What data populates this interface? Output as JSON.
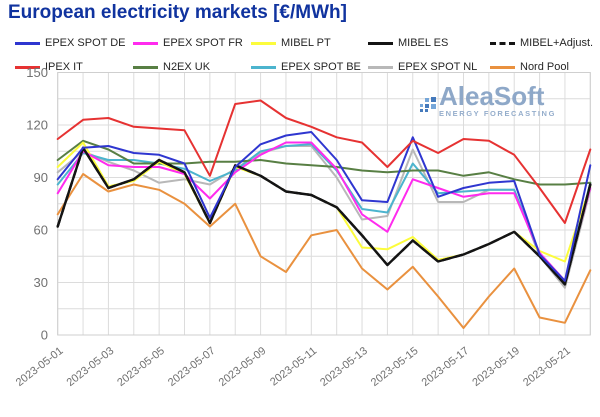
{
  "title": "European electricity markets [€/MWh]",
  "watermark": {
    "brand": "AleaSoft",
    "tagline": "ENERGY FORECASTING"
  },
  "legend": {
    "rows": [
      [
        0,
        1,
        2,
        3,
        4
      ],
      [
        5,
        6,
        7,
        8,
        9
      ]
    ],
    "column_lefts": [
      15,
      133,
      251,
      368,
      490
    ],
    "row_tops": [
      36,
      60
    ]
  },
  "chart_data": {
    "type": "line",
    "title": "European electricity markets [€/MWh]",
    "xlabel": "",
    "ylabel": "€/MWh",
    "ylim": [
      0,
      150
    ],
    "y_ticks": [
      0,
      30,
      60,
      90,
      120,
      150
    ],
    "y_minor_step": 15,
    "grid": true,
    "legend_position": "top",
    "x": [
      "2023-05-01",
      "2023-05-02",
      "2023-05-03",
      "2023-05-04",
      "2023-05-05",
      "2023-05-06",
      "2023-05-07",
      "2023-05-08",
      "2023-05-09",
      "2023-05-10",
      "2023-05-11",
      "2023-05-12",
      "2023-05-13",
      "2023-05-14",
      "2023-05-15",
      "2023-05-16",
      "2023-05-17",
      "2023-05-18",
      "2023-05-19",
      "2023-05-20",
      "2023-05-21",
      "2023-05-22"
    ],
    "x_tick_shown_every": 2,
    "series": [
      {
        "name": "EPEX SPOT DE",
        "color": "#2f36d0",
        "dash": null,
        "values": [
          89,
          107,
          108,
          104,
          103,
          98,
          67,
          96,
          109,
          114,
          116,
          100,
          77,
          76,
          113,
          79,
          84,
          87,
          88,
          46,
          31,
          97
        ]
      },
      {
        "name": "EPEX SPOT FR",
        "color": "#ff2bee",
        "dash": null,
        "values": [
          81,
          105,
          97,
          96,
          96,
          92,
          78,
          93,
          103,
          110,
          110,
          95,
          69,
          59,
          89,
          84,
          79,
          81,
          81,
          47,
          31,
          84
        ]
      },
      {
        "name": "MIBEL PT",
        "color": "#fcfc3c",
        "dash": null,
        "values": [
          96,
          110,
          85,
          88,
          99,
          92,
          64,
          96,
          91,
          82,
          80,
          73,
          50,
          49,
          56,
          43,
          46,
          52,
          59,
          48,
          42,
          85
        ]
      },
      {
        "name": "MIBEL ES",
        "color": "#141414",
        "dash": null,
        "values": [
          62,
          107,
          84,
          89,
          100,
          93,
          64,
          97,
          91,
          82,
          80,
          73,
          57,
          40,
          54,
          42,
          46,
          52,
          59,
          45,
          29,
          86
        ]
      },
      {
        "name": "MIBEL+Adjust.",
        "color": "#141414",
        "dash": "7 6",
        "values": [
          62,
          107,
          84,
          89,
          100,
          93,
          64,
          97,
          91,
          82,
          80,
          73,
          57,
          40,
          54,
          42,
          46,
          52,
          59,
          45,
          29,
          86
        ]
      },
      {
        "name": "IPEX IT",
        "color": "#e63232",
        "dash": null,
        "values": [
          112,
          123,
          124,
          119,
          118,
          117,
          91,
          132,
          134,
          124,
          119,
          113,
          110,
          96,
          111,
          104,
          112,
          111,
          103,
          84,
          64,
          106
        ]
      },
      {
        "name": "N2EX UK",
        "color": "#587f44",
        "dash": null,
        "values": [
          100,
          111,
          106,
          98,
          98,
          98,
          99,
          99,
          100,
          98,
          97,
          96,
          94,
          93,
          94,
          94,
          91,
          93,
          89,
          86,
          86,
          87
        ]
      },
      {
        "name": "EPEX SPOT BE",
        "color": "#4cb4ce",
        "dash": null,
        "values": [
          86,
          104,
          100,
          100,
          98,
          95,
          88,
          94,
          105,
          108,
          109,
          94,
          72,
          70,
          98,
          81,
          82,
          83,
          83,
          46,
          31,
          87
        ]
      },
      {
        "name": "EPEX SPOT NL",
        "color": "#b8b8b8",
        "dash": null,
        "values": [
          93,
          105,
          99,
          94,
          87,
          89,
          86,
          95,
          104,
          108,
          108,
          90,
          66,
          68,
          106,
          76,
          76,
          83,
          83,
          45,
          27,
          83
        ]
      },
      {
        "name": "Nord Pool",
        "color": "#e9913f",
        "dash": null,
        "values": [
          69,
          92,
          82,
          86,
          83,
          75,
          62,
          75,
          45,
          36,
          57,
          60,
          38,
          26,
          39,
          22,
          4,
          22,
          38,
          10,
          7,
          37
        ]
      }
    ]
  }
}
